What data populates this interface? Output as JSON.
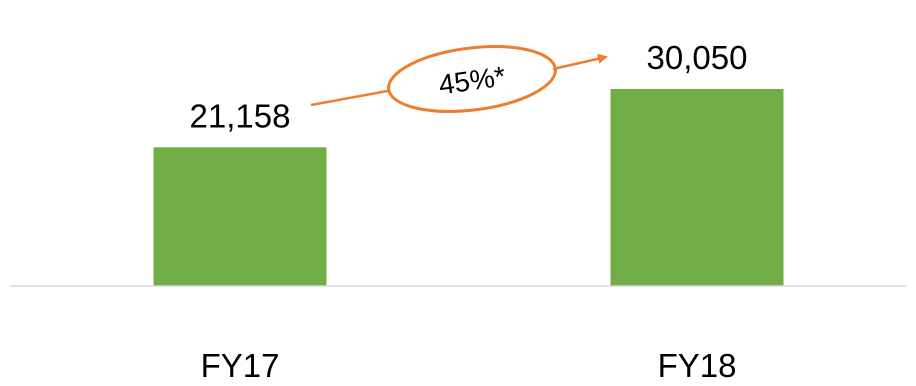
{
  "chart_data": {
    "type": "bar",
    "categories": [
      "FY17",
      "FY18"
    ],
    "values": [
      21158,
      30050
    ],
    "value_labels": [
      "21,158",
      "30,050"
    ],
    "title": "",
    "xlabel": "",
    "ylabel": "",
    "ylim": [
      0,
      36000
    ],
    "grid": false,
    "legend": "none",
    "bar_color": "#70AD47",
    "annotation": {
      "text": "45%*",
      "color": "#ED7D31",
      "from_category": "FY17",
      "to_category": "FY18"
    }
  }
}
